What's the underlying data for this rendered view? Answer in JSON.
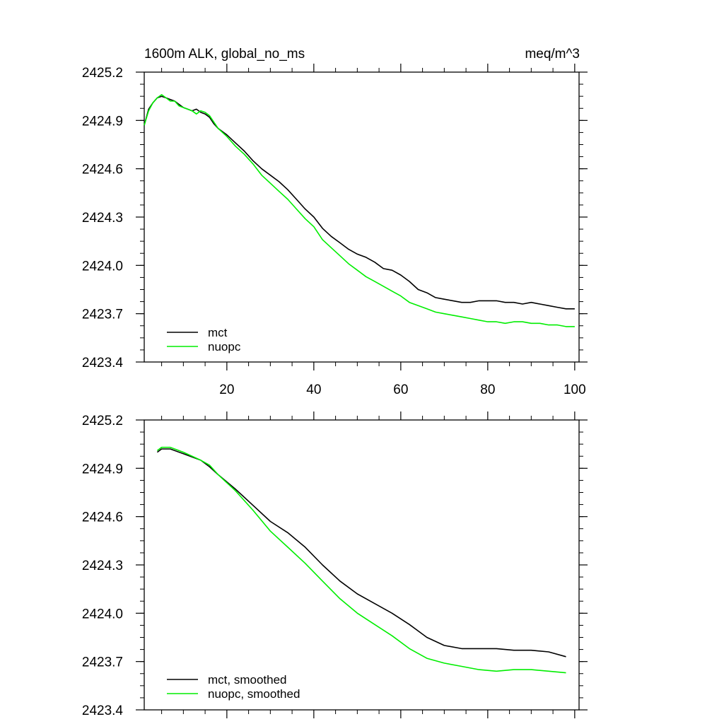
{
  "chart_data": [
    {
      "type": "line",
      "title": "1600m ALK, global_no_ms",
      "units": "meq/m^3",
      "xlim": [
        1,
        101
      ],
      "ylim": [
        2423.4,
        2425.2
      ],
      "xticks": [
        20,
        40,
        60,
        80,
        100
      ],
      "yticks": [
        2423.4,
        2423.7,
        2424.0,
        2424.3,
        2424.6,
        2424.9,
        2425.2
      ],
      "ytick_labels": [
        "2423.4",
        "2423.7",
        "2424.0",
        "2424.3",
        "2424.6",
        "2424.9",
        "2425.2"
      ],
      "xtick_labels": [
        "20",
        "40",
        "60",
        "80",
        "100"
      ],
      "legend_position": "bottom-left",
      "series": [
        {
          "name": "mct",
          "color": "#000000",
          "points": [
            [
              1,
              2424.87
            ],
            [
              2,
              2424.97
            ],
            [
              3,
              2425.01
            ],
            [
              4,
              2425.04
            ],
            [
              5,
              2425.05
            ],
            [
              6,
              2425.04
            ],
            [
              7,
              2425.03
            ],
            [
              8,
              2425.02
            ],
            [
              9,
              2425.0
            ],
            [
              10,
              2424.98
            ],
            [
              11,
              2424.97
            ],
            [
              12,
              2424.96
            ],
            [
              13,
              2424.97
            ],
            [
              14,
              2424.95
            ],
            [
              15,
              2424.94
            ],
            [
              16,
              2424.92
            ],
            [
              17,
              2424.88
            ],
            [
              18,
              2424.85
            ],
            [
              20,
              2424.81
            ],
            [
              22,
              2424.76
            ],
            [
              24,
              2424.71
            ],
            [
              26,
              2424.65
            ],
            [
              28,
              2424.6
            ],
            [
              30,
              2424.56
            ],
            [
              32,
              2424.52
            ],
            [
              34,
              2424.47
            ],
            [
              36,
              2424.41
            ],
            [
              38,
              2424.35
            ],
            [
              40,
              2424.3
            ],
            [
              42,
              2424.23
            ],
            [
              44,
              2424.18
            ],
            [
              46,
              2424.14
            ],
            [
              48,
              2424.1
            ],
            [
              50,
              2424.07
            ],
            [
              52,
              2424.05
            ],
            [
              54,
              2424.02
            ],
            [
              56,
              2423.98
            ],
            [
              58,
              2423.97
            ],
            [
              60,
              2423.94
            ],
            [
              62,
              2423.9
            ],
            [
              64,
              2423.85
            ],
            [
              66,
              2423.83
            ],
            [
              68,
              2423.8
            ],
            [
              70,
              2423.79
            ],
            [
              72,
              2423.78
            ],
            [
              74,
              2423.77
            ],
            [
              76,
              2423.77
            ],
            [
              78,
              2423.78
            ],
            [
              80,
              2423.78
            ],
            [
              82,
              2423.78
            ],
            [
              84,
              2423.77
            ],
            [
              86,
              2423.77
            ],
            [
              88,
              2423.76
            ],
            [
              90,
              2423.77
            ],
            [
              92,
              2423.76
            ],
            [
              94,
              2423.75
            ],
            [
              96,
              2423.74
            ],
            [
              98,
              2423.73
            ],
            [
              100,
              2423.73
            ]
          ]
        },
        {
          "name": "nuopc",
          "color": "#00ee00",
          "points": [
            [
              1,
              2424.87
            ],
            [
              2,
              2424.96
            ],
            [
              3,
              2425.01
            ],
            [
              4,
              2425.04
            ],
            [
              5,
              2425.06
            ],
            [
              6,
              2425.04
            ],
            [
              7,
              2425.02
            ],
            [
              8,
              2425.02
            ],
            [
              9,
              2424.99
            ],
            [
              10,
              2424.98
            ],
            [
              11,
              2424.97
            ],
            [
              12,
              2424.96
            ],
            [
              13,
              2424.94
            ],
            [
              14,
              2424.96
            ],
            [
              15,
              2424.95
            ],
            [
              16,
              2424.93
            ],
            [
              17,
              2424.89
            ],
            [
              18,
              2424.85
            ],
            [
              20,
              2424.8
            ],
            [
              22,
              2424.74
            ],
            [
              24,
              2424.69
            ],
            [
              26,
              2424.63
            ],
            [
              28,
              2424.56
            ],
            [
              30,
              2424.51
            ],
            [
              32,
              2424.46
            ],
            [
              34,
              2424.41
            ],
            [
              36,
              2424.35
            ],
            [
              38,
              2424.29
            ],
            [
              40,
              2424.24
            ],
            [
              42,
              2424.16
            ],
            [
              44,
              2424.11
            ],
            [
              46,
              2424.06
            ],
            [
              48,
              2424.01
            ],
            [
              50,
              2423.97
            ],
            [
              52,
              2423.93
            ],
            [
              54,
              2423.9
            ],
            [
              56,
              2423.87
            ],
            [
              58,
              2423.84
            ],
            [
              60,
              2423.81
            ],
            [
              62,
              2423.77
            ],
            [
              64,
              2423.75
            ],
            [
              66,
              2423.73
            ],
            [
              68,
              2423.71
            ],
            [
              70,
              2423.7
            ],
            [
              72,
              2423.69
            ],
            [
              74,
              2423.68
            ],
            [
              76,
              2423.67
            ],
            [
              78,
              2423.66
            ],
            [
              80,
              2423.65
            ],
            [
              82,
              2423.65
            ],
            [
              84,
              2423.64
            ],
            [
              86,
              2423.65
            ],
            [
              88,
              2423.65
            ],
            [
              90,
              2423.64
            ],
            [
              92,
              2423.64
            ],
            [
              94,
              2423.63
            ],
            [
              96,
              2423.63
            ],
            [
              98,
              2423.62
            ],
            [
              100,
              2423.62
            ]
          ]
        }
      ]
    },
    {
      "type": "line",
      "title": "",
      "xlim": [
        1,
        101
      ],
      "ylim": [
        2423.4,
        2425.2
      ],
      "xticks": [
        20,
        40,
        60,
        80,
        100
      ],
      "yticks": [
        2423.4,
        2423.7,
        2424.0,
        2424.3,
        2424.6,
        2424.9,
        2425.2
      ],
      "ytick_labels": [
        "2423.4",
        "2423.7",
        "2424.0",
        "2424.3",
        "2424.6",
        "2424.9",
        "2425.2"
      ],
      "xtick_labels": [],
      "legend_position": "bottom-left",
      "series": [
        {
          "name": "mct, smoothed",
          "color": "#000000",
          "points": [
            [
              4,
              2425.0
            ],
            [
              5,
              2425.02
            ],
            [
              7,
              2425.02
            ],
            [
              10,
              2424.99
            ],
            [
              14,
              2424.95
            ],
            [
              16,
              2424.91
            ],
            [
              18,
              2424.86
            ],
            [
              22,
              2424.77
            ],
            [
              26,
              2424.67
            ],
            [
              30,
              2424.57
            ],
            [
              34,
              2424.5
            ],
            [
              38,
              2424.41
            ],
            [
              42,
              2424.3
            ],
            [
              46,
              2424.2
            ],
            [
              50,
              2424.12
            ],
            [
              54,
              2424.06
            ],
            [
              58,
              2424.0
            ],
            [
              62,
              2423.93
            ],
            [
              66,
              2423.85
            ],
            [
              70,
              2423.8
            ],
            [
              74,
              2423.78
            ],
            [
              78,
              2423.78
            ],
            [
              82,
              2423.78
            ],
            [
              86,
              2423.77
            ],
            [
              90,
              2423.77
            ],
            [
              94,
              2423.76
            ],
            [
              98,
              2423.73
            ]
          ]
        },
        {
          "name": "nuopc, smoothed",
          "color": "#00ee00",
          "points": [
            [
              4,
              2425.01
            ],
            [
              5,
              2425.03
            ],
            [
              7,
              2425.03
            ],
            [
              10,
              2425.0
            ],
            [
              14,
              2424.95
            ],
            [
              16,
              2424.92
            ],
            [
              18,
              2424.86
            ],
            [
              22,
              2424.76
            ],
            [
              26,
              2424.64
            ],
            [
              30,
              2424.51
            ],
            [
              34,
              2424.41
            ],
            [
              38,
              2424.31
            ],
            [
              42,
              2424.2
            ],
            [
              46,
              2424.09
            ],
            [
              50,
              2424.0
            ],
            [
              54,
              2423.93
            ],
            [
              58,
              2423.86
            ],
            [
              62,
              2423.78
            ],
            [
              66,
              2423.72
            ],
            [
              70,
              2423.69
            ],
            [
              74,
              2423.67
            ],
            [
              78,
              2423.65
            ],
            [
              82,
              2423.64
            ],
            [
              86,
              2423.65
            ],
            [
              90,
              2423.65
            ],
            [
              94,
              2423.64
            ],
            [
              98,
              2423.63
            ]
          ]
        }
      ]
    }
  ]
}
